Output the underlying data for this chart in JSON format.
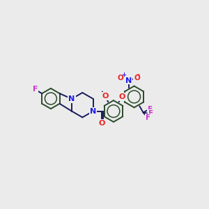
{
  "background_color": "#ebebeb",
  "bond_color": "#1a1a5e",
  "atom_colors": {
    "F": "#cc33cc",
    "N": "#1a1aee",
    "O": "#ee2222",
    "default": "#1a1a5e"
  },
  "ring_color": "#2a4a2a"
}
